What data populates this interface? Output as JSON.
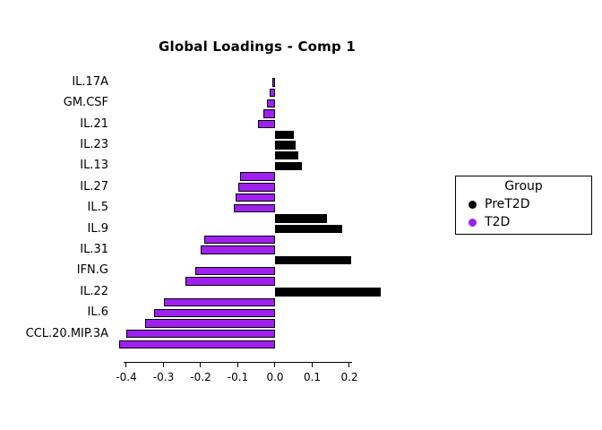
{
  "legend": {
    "title": "Group",
    "items": [
      {
        "label": "PreT2D",
        "color": "#000000"
      },
      {
        "label": "T2D",
        "color": "#A020F0"
      }
    ]
  },
  "chart_data": {
    "type": "bar",
    "orientation": "horizontal",
    "title": "Global Loadings - Comp 1",
    "xlabel": "",
    "ylabel": "",
    "xlim": [
      -0.45,
      0.3
    ],
    "x_ticks": [
      -0.4,
      -0.3,
      -0.2,
      -0.1,
      0,
      0.1,
      0.2
    ],
    "x_tick_labels": [
      "-0.4",
      "-0.3",
      "-0.2",
      "-0.1",
      "0.0",
      "0.1",
      "0.2"
    ],
    "grid": false,
    "legend_position": "right",
    "colors": {
      "PreT2D": "#000000",
      "T2D": "#A020F0"
    },
    "bars": [
      {
        "label": "IL.17A",
        "value": -0.008,
        "group": "T2D"
      },
      {
        "label": "",
        "value": -0.015,
        "group": "T2D"
      },
      {
        "label": "GM.CSF",
        "value": -0.022,
        "group": "T2D"
      },
      {
        "label": "",
        "value": -0.032,
        "group": "T2D"
      },
      {
        "label": "IL.21",
        "value": -0.045,
        "group": "T2D"
      },
      {
        "label": "",
        "value": 0.05,
        "group": "PreT2D"
      },
      {
        "label": "IL.23",
        "value": 0.055,
        "group": "PreT2D"
      },
      {
        "label": "",
        "value": 0.062,
        "group": "PreT2D"
      },
      {
        "label": "IL.13",
        "value": 0.072,
        "group": "PreT2D"
      },
      {
        "label": "",
        "value": -0.095,
        "group": "T2D"
      },
      {
        "label": "IL.27",
        "value": -0.1,
        "group": "T2D"
      },
      {
        "label": "",
        "value": -0.105,
        "group": "T2D"
      },
      {
        "label": "IL.5",
        "value": -0.112,
        "group": "T2D"
      },
      {
        "label": "",
        "value": 0.14,
        "group": "PreT2D"
      },
      {
        "label": "IL.9",
        "value": 0.18,
        "group": "PreT2D"
      },
      {
        "label": "",
        "value": -0.19,
        "group": "T2D"
      },
      {
        "label": "IL.31",
        "value": -0.2,
        "group": "T2D"
      },
      {
        "label": "",
        "value": 0.205,
        "group": "PreT2D"
      },
      {
        "label": "IFN.G",
        "value": -0.215,
        "group": "T2D"
      },
      {
        "label": "",
        "value": -0.24,
        "group": "T2D"
      },
      {
        "label": "IL.22",
        "value": 0.285,
        "group": "PreT2D"
      },
      {
        "label": "",
        "value": -0.3,
        "group": "T2D"
      },
      {
        "label": "IL.6",
        "value": -0.325,
        "group": "T2D"
      },
      {
        "label": "",
        "value": -0.35,
        "group": "T2D"
      },
      {
        "label": "CCL.20.MIP.3A",
        "value": -0.4,
        "group": "T2D"
      },
      {
        "label": "",
        "value": -0.42,
        "group": "T2D"
      }
    ]
  }
}
